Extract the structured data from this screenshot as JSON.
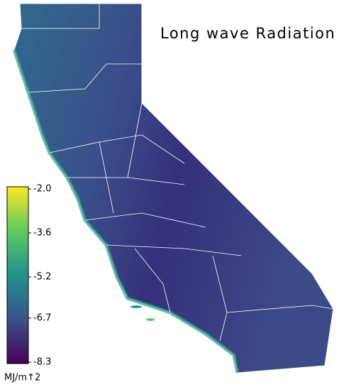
{
  "map": {
    "title": "Long wave Radiation",
    "colorbar": {
      "label": "MJ/m↑2",
      "lim": [
        -8.3,
        -2.0
      ],
      "ticks": [
        {
          "value": -2.0,
          "label": "-2.0"
        },
        -3.6,
        -5.2,
        -6.7,
        -8.3
      ]
    }
  }
}
